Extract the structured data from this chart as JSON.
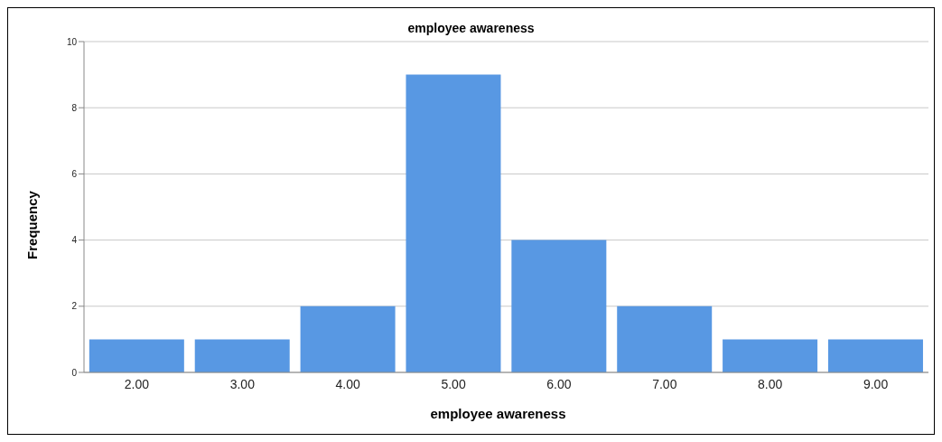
{
  "chart_data": {
    "type": "bar",
    "title": "employee awareness",
    "xlabel": "employee awareness",
    "ylabel": "Frequency",
    "categories": [
      "2.00",
      "3.00",
      "4.00",
      "5.00",
      "6.00",
      "7.00",
      "8.00",
      "9.00"
    ],
    "values": [
      1,
      1,
      2,
      9,
      4,
      2,
      1,
      1
    ],
    "color": "#5898e3",
    "ylim": [
      0,
      10
    ],
    "yticks": [
      0,
      2,
      4,
      6,
      8,
      10
    ],
    "grid": "y"
  }
}
